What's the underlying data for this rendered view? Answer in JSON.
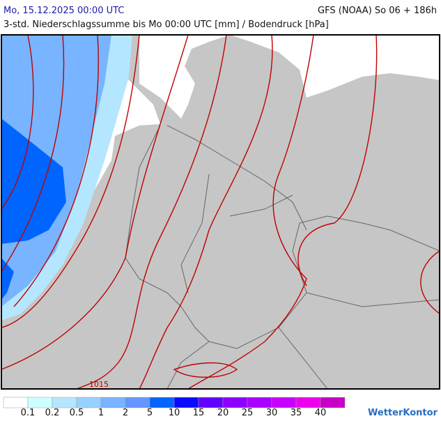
{
  "header": {
    "valid_time": "Mo, 15.12.2025 00:00 UTC",
    "model_run": "GFS (NOAA) So 06 + 186h",
    "subtitle": "3-std. Niederschlagssumme bis Mo 00:00 UTC [mm] / Bodendruck [hPa]"
  },
  "map": {
    "isobar_labels": [
      "1015"
    ]
  },
  "legend": {
    "labels": [
      "0.1",
      "0.2",
      "0.5",
      "1",
      "2",
      "5",
      "10",
      "15",
      "20",
      "25",
      "30",
      "35",
      "40"
    ],
    "colors": [
      "#ffffff",
      "#ccffff",
      "#b4e6ff",
      "#96d2ff",
      "#78b4ff",
      "#6496ff",
      "#0064ff",
      "#0a0aff",
      "#6400ff",
      "#8c00ff",
      "#aa00ff",
      "#c800ff",
      "#ee00ee",
      "#c800c8"
    ]
  },
  "logo": "WetterKontor"
}
